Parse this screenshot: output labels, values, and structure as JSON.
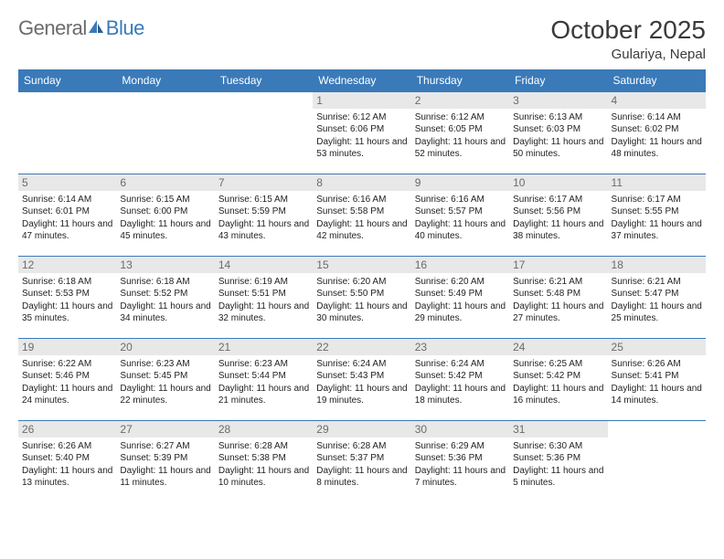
{
  "header": {
    "logo_left": "General",
    "logo_right": "Blue",
    "month_title": "October 2025",
    "location": "Gulariya, Nepal"
  },
  "colors": {
    "accent": "#3a7ab8",
    "day_header_bg": "#e8e8e8",
    "text": "#333333",
    "logo_gray": "#6b6b6b"
  },
  "weekdays": [
    "Sunday",
    "Monday",
    "Tuesday",
    "Wednesday",
    "Thursday",
    "Friday",
    "Saturday"
  ],
  "weeks": [
    [
      {
        "blank": true
      },
      {
        "blank": true
      },
      {
        "blank": true
      },
      {
        "day": "1",
        "sunrise": "Sunrise: 6:12 AM",
        "sunset": "Sunset: 6:06 PM",
        "daylight": "Daylight: 11 hours and 53 minutes."
      },
      {
        "day": "2",
        "sunrise": "Sunrise: 6:12 AM",
        "sunset": "Sunset: 6:05 PM",
        "daylight": "Daylight: 11 hours and 52 minutes."
      },
      {
        "day": "3",
        "sunrise": "Sunrise: 6:13 AM",
        "sunset": "Sunset: 6:03 PM",
        "daylight": "Daylight: 11 hours and 50 minutes."
      },
      {
        "day": "4",
        "sunrise": "Sunrise: 6:14 AM",
        "sunset": "Sunset: 6:02 PM",
        "daylight": "Daylight: 11 hours and 48 minutes."
      }
    ],
    [
      {
        "day": "5",
        "sunrise": "Sunrise: 6:14 AM",
        "sunset": "Sunset: 6:01 PM",
        "daylight": "Daylight: 11 hours and 47 minutes."
      },
      {
        "day": "6",
        "sunrise": "Sunrise: 6:15 AM",
        "sunset": "Sunset: 6:00 PM",
        "daylight": "Daylight: 11 hours and 45 minutes."
      },
      {
        "day": "7",
        "sunrise": "Sunrise: 6:15 AM",
        "sunset": "Sunset: 5:59 PM",
        "daylight": "Daylight: 11 hours and 43 minutes."
      },
      {
        "day": "8",
        "sunrise": "Sunrise: 6:16 AM",
        "sunset": "Sunset: 5:58 PM",
        "daylight": "Daylight: 11 hours and 42 minutes."
      },
      {
        "day": "9",
        "sunrise": "Sunrise: 6:16 AM",
        "sunset": "Sunset: 5:57 PM",
        "daylight": "Daylight: 11 hours and 40 minutes."
      },
      {
        "day": "10",
        "sunrise": "Sunrise: 6:17 AM",
        "sunset": "Sunset: 5:56 PM",
        "daylight": "Daylight: 11 hours and 38 minutes."
      },
      {
        "day": "11",
        "sunrise": "Sunrise: 6:17 AM",
        "sunset": "Sunset: 5:55 PM",
        "daylight": "Daylight: 11 hours and 37 minutes."
      }
    ],
    [
      {
        "day": "12",
        "sunrise": "Sunrise: 6:18 AM",
        "sunset": "Sunset: 5:53 PM",
        "daylight": "Daylight: 11 hours and 35 minutes."
      },
      {
        "day": "13",
        "sunrise": "Sunrise: 6:18 AM",
        "sunset": "Sunset: 5:52 PM",
        "daylight": "Daylight: 11 hours and 34 minutes."
      },
      {
        "day": "14",
        "sunrise": "Sunrise: 6:19 AM",
        "sunset": "Sunset: 5:51 PM",
        "daylight": "Daylight: 11 hours and 32 minutes."
      },
      {
        "day": "15",
        "sunrise": "Sunrise: 6:20 AM",
        "sunset": "Sunset: 5:50 PM",
        "daylight": "Daylight: 11 hours and 30 minutes."
      },
      {
        "day": "16",
        "sunrise": "Sunrise: 6:20 AM",
        "sunset": "Sunset: 5:49 PM",
        "daylight": "Daylight: 11 hours and 29 minutes."
      },
      {
        "day": "17",
        "sunrise": "Sunrise: 6:21 AM",
        "sunset": "Sunset: 5:48 PM",
        "daylight": "Daylight: 11 hours and 27 minutes."
      },
      {
        "day": "18",
        "sunrise": "Sunrise: 6:21 AM",
        "sunset": "Sunset: 5:47 PM",
        "daylight": "Daylight: 11 hours and 25 minutes."
      }
    ],
    [
      {
        "day": "19",
        "sunrise": "Sunrise: 6:22 AM",
        "sunset": "Sunset: 5:46 PM",
        "daylight": "Daylight: 11 hours and 24 minutes."
      },
      {
        "day": "20",
        "sunrise": "Sunrise: 6:23 AM",
        "sunset": "Sunset: 5:45 PM",
        "daylight": "Daylight: 11 hours and 22 minutes."
      },
      {
        "day": "21",
        "sunrise": "Sunrise: 6:23 AM",
        "sunset": "Sunset: 5:44 PM",
        "daylight": "Daylight: 11 hours and 21 minutes."
      },
      {
        "day": "22",
        "sunrise": "Sunrise: 6:24 AM",
        "sunset": "Sunset: 5:43 PM",
        "daylight": "Daylight: 11 hours and 19 minutes."
      },
      {
        "day": "23",
        "sunrise": "Sunrise: 6:24 AM",
        "sunset": "Sunset: 5:42 PM",
        "daylight": "Daylight: 11 hours and 18 minutes."
      },
      {
        "day": "24",
        "sunrise": "Sunrise: 6:25 AM",
        "sunset": "Sunset: 5:42 PM",
        "daylight": "Daylight: 11 hours and 16 minutes."
      },
      {
        "day": "25",
        "sunrise": "Sunrise: 6:26 AM",
        "sunset": "Sunset: 5:41 PM",
        "daylight": "Daylight: 11 hours and 14 minutes."
      }
    ],
    [
      {
        "day": "26",
        "sunrise": "Sunrise: 6:26 AM",
        "sunset": "Sunset: 5:40 PM",
        "daylight": "Daylight: 11 hours and 13 minutes."
      },
      {
        "day": "27",
        "sunrise": "Sunrise: 6:27 AM",
        "sunset": "Sunset: 5:39 PM",
        "daylight": "Daylight: 11 hours and 11 minutes."
      },
      {
        "day": "28",
        "sunrise": "Sunrise: 6:28 AM",
        "sunset": "Sunset: 5:38 PM",
        "daylight": "Daylight: 11 hours and 10 minutes."
      },
      {
        "day": "29",
        "sunrise": "Sunrise: 6:28 AM",
        "sunset": "Sunset: 5:37 PM",
        "daylight": "Daylight: 11 hours and 8 minutes."
      },
      {
        "day": "30",
        "sunrise": "Sunrise: 6:29 AM",
        "sunset": "Sunset: 5:36 PM",
        "daylight": "Daylight: 11 hours and 7 minutes."
      },
      {
        "day": "31",
        "sunrise": "Sunrise: 6:30 AM",
        "sunset": "Sunset: 5:36 PM",
        "daylight": "Daylight: 11 hours and 5 minutes."
      },
      {
        "blank": true
      }
    ]
  ]
}
